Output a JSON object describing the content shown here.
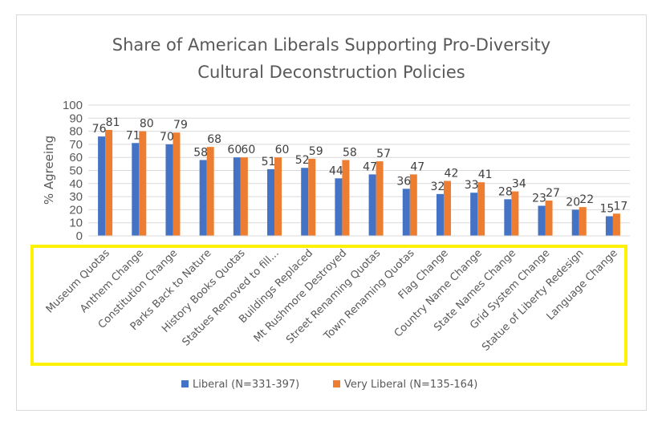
{
  "chart_data": {
    "type": "bar",
    "title": "Share of American Liberals Supporting Pro-Diversity Cultural Deconstruction Policies",
    "title_lines": [
      "Share of American Liberals Supporting Pro-Diversity",
      "Cultural Deconstruction Policies"
    ],
    "ylabel": "% Agreeing",
    "xlabel": "",
    "ylim": [
      0,
      100
    ],
    "yticks": [
      0,
      10,
      20,
      30,
      40,
      50,
      60,
      70,
      80,
      90,
      100
    ],
    "grid": true,
    "legend_position": "bottom",
    "categories": [
      "Museum Quotas",
      "Anthem Change",
      "Constitution Change",
      "Parks Back to Nature",
      "History Books Quotas",
      "Statues Removed to fill...",
      "Buildings Replaced",
      "Mt Rushmore Destroyed",
      "Street Renaming Quotas",
      "Town Renaming Quotas",
      "Flag Change",
      "Country Name Change",
      "State Names Change",
      "Grid System Change",
      "Statue of Liberty Redesign",
      "Language Change"
    ],
    "series": [
      {
        "name": "Liberal (N=331-397)",
        "color": "#4472C4",
        "values": [
          76,
          71,
          70,
          58,
          60,
          51,
          52,
          44,
          47,
          36,
          32,
          33,
          28,
          23,
          20,
          15
        ]
      },
      {
        "name": "Very Liberal (N=135-164)",
        "color": "#ED7D31",
        "values": [
          81,
          80,
          79,
          68,
          60,
          60,
          59,
          58,
          57,
          47,
          42,
          41,
          34,
          27,
          22,
          17
        ]
      }
    ]
  },
  "annotation": {
    "highlight_color": "#FFF200",
    "highlight_target": "category-axis-labels"
  }
}
